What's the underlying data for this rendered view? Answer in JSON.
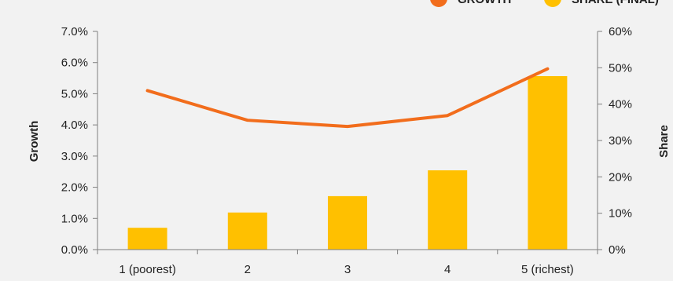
{
  "chart_data": {
    "type": "bar",
    "categories": [
      "1 (poorest)",
      "2",
      "3",
      "4",
      "5 (richest)"
    ],
    "series": [
      {
        "name": "SHARE (FINAL)",
        "kind": "bar",
        "axis": "right",
        "values": [
          6,
          10.2,
          14.7,
          21.8,
          47.7
        ],
        "color": "#FFC000"
      },
      {
        "name": "GROWTH",
        "kind": "line",
        "axis": "left",
        "values": [
          5.1,
          4.15,
          3.95,
          4.3,
          5.8
        ],
        "color": "#F26D1C"
      }
    ],
    "y_left": {
      "label": "Growth",
      "ylim": [
        0,
        7
      ],
      "ticks": [
        "0.0%",
        "1.0%",
        "2.0%",
        "3.0%",
        "4.0%",
        "5.0%",
        "6.0%",
        "7.0%"
      ]
    },
    "y_right": {
      "label": "Share",
      "ylim": [
        0,
        60
      ],
      "ticks": [
        "0%",
        "10%",
        "20%",
        "30%",
        "40%",
        "50%",
        "60%"
      ]
    },
    "legend": "top-right",
    "grid": false
  }
}
